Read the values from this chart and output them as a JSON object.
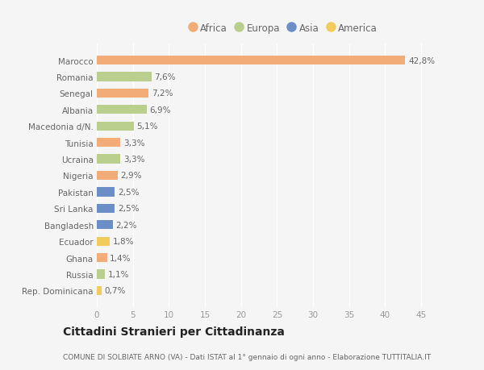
{
  "countries": [
    "Marocco",
    "Romania",
    "Senegal",
    "Albania",
    "Macedonia d/N.",
    "Tunisia",
    "Ucraina",
    "Nigeria",
    "Pakistan",
    "Sri Lanka",
    "Bangladesh",
    "Ecuador",
    "Ghana",
    "Russia",
    "Rep. Dominicana"
  ],
  "values": [
    42.8,
    7.6,
    7.2,
    6.9,
    5.1,
    3.3,
    3.3,
    2.9,
    2.5,
    2.5,
    2.2,
    1.8,
    1.4,
    1.1,
    0.7
  ],
  "labels": [
    "42,8%",
    "7,6%",
    "7,2%",
    "6,9%",
    "5,1%",
    "3,3%",
    "3,3%",
    "2,9%",
    "2,5%",
    "2,5%",
    "2,2%",
    "1,8%",
    "1,4%",
    "1,1%",
    "0,7%"
  ],
  "continents": [
    "Africa",
    "Europa",
    "Africa",
    "Europa",
    "Europa",
    "Africa",
    "Europa",
    "Africa",
    "Asia",
    "Asia",
    "Asia",
    "America",
    "Africa",
    "Europa",
    "America"
  ],
  "colors": {
    "Africa": "#F2AC78",
    "Europa": "#BACF8E",
    "Asia": "#6B8EC7",
    "America": "#F2CC5A"
  },
  "legend_order": [
    "Africa",
    "Europa",
    "Asia",
    "America"
  ],
  "xlim": [
    0,
    47
  ],
  "xticks": [
    0,
    5,
    10,
    15,
    20,
    25,
    30,
    35,
    40,
    45
  ],
  "title": "Cittadini Stranieri per Cittadinanza",
  "subtitle": "COMUNE DI SOLBIATE ARNO (VA) - Dati ISTAT al 1° gennaio di ogni anno - Elaborazione TUTTITALIA.IT",
  "bg_color": "#f5f5f5",
  "bar_height": 0.55
}
